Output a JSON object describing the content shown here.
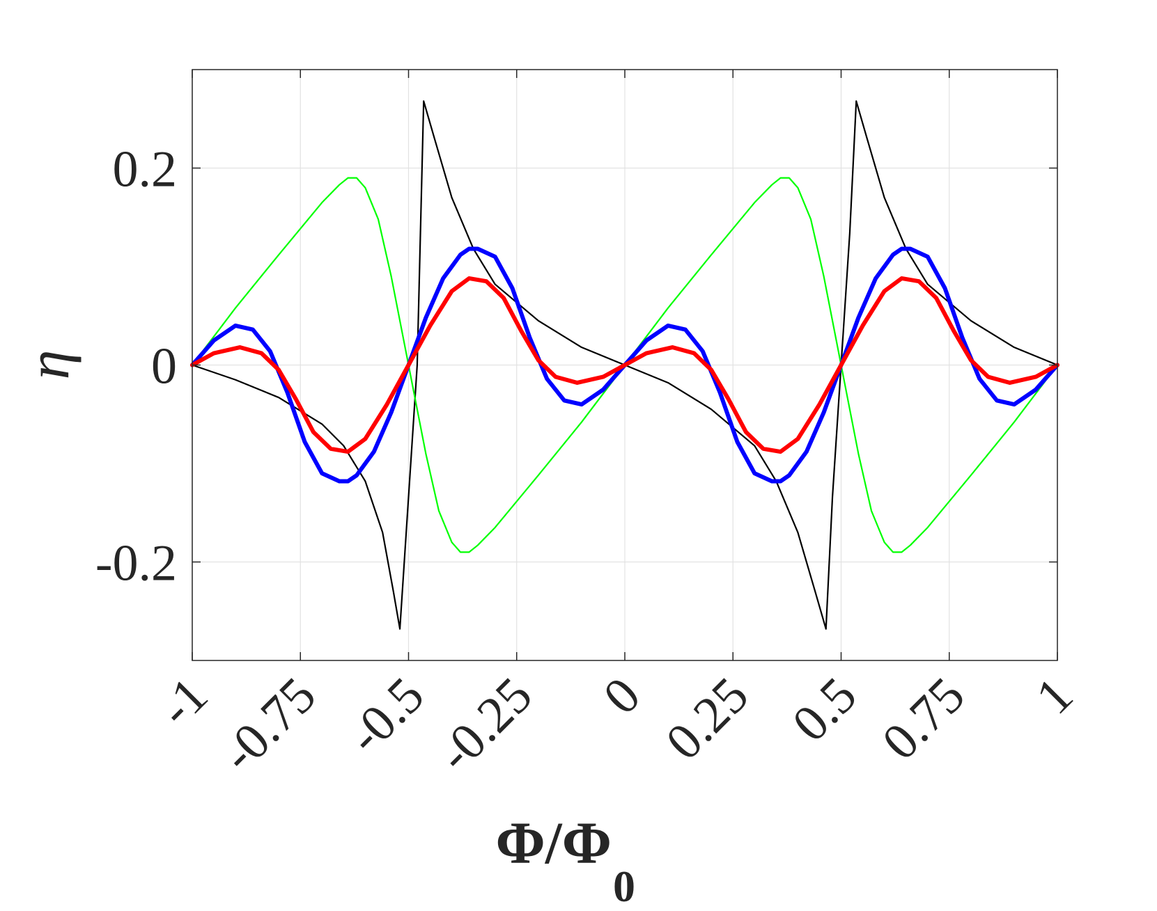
{
  "chart_data": {
    "type": "line",
    "title": "",
    "xlabel": "Φ/Φ",
    "xlabel_subscript": "0",
    "ylabel": "η",
    "xlim": [
      -1,
      1
    ],
    "ylim": [
      -0.3,
      0.3
    ],
    "xticks": [
      -1,
      -0.75,
      -0.5,
      -0.25,
      0,
      0.25,
      0.5,
      0.75,
      1
    ],
    "xtick_labels": [
      "-1",
      "-0.75",
      "-0.5",
      "-0.25",
      "0",
      "0.25",
      "0.5",
      "0.75",
      "1"
    ],
    "yticks": [
      -0.2,
      0,
      0.2
    ],
    "ytick_labels": [
      "-0.2",
      "0",
      "0.2"
    ],
    "grid": true,
    "legend": "none",
    "series": [
      {
        "color": "#000000",
        "x": [
          -1,
          -0.9,
          -0.8,
          -0.7,
          -0.65,
          -0.6,
          -0.56,
          -0.535,
          -0.52,
          -0.5,
          -0.48,
          -0.465,
          -0.44,
          -0.4,
          -0.35,
          -0.3,
          -0.2,
          -0.1,
          0,
          0.1,
          0.2,
          0.3,
          0.35,
          0.4,
          0.44,
          0.465,
          0.48,
          0.5,
          0.52,
          0.535,
          0.56,
          0.6,
          0.65,
          0.7,
          0.8,
          0.9,
          1
        ],
        "y": [
          0,
          -0.015,
          -0.033,
          -0.06,
          -0.082,
          -0.118,
          -0.17,
          -0.23,
          -0.268,
          -0.134,
          0,
          0.268,
          0.23,
          0.17,
          0.118,
          0.082,
          0.045,
          0.018,
          0,
          -0.018,
          -0.045,
          -0.082,
          -0.118,
          -0.17,
          -0.23,
          -0.268,
          -0.134,
          0,
          0.134,
          0.268,
          0.23,
          0.17,
          0.118,
          0.082,
          0.045,
          0.018,
          0
        ]
      },
      {
        "color": "#00ff00",
        "x": [
          -1,
          -0.9,
          -0.8,
          -0.7,
          -0.66,
          -0.64,
          -0.62,
          -0.6,
          -0.57,
          -0.54,
          -0.5,
          -0.46,
          -0.43,
          -0.4,
          -0.38,
          -0.36,
          -0.34,
          -0.3,
          -0.2,
          -0.1,
          0,
          0.1,
          0.2,
          0.3,
          0.34,
          0.36,
          0.38,
          0.4,
          0.43,
          0.46,
          0.5,
          0.54,
          0.57,
          0.6,
          0.62,
          0.64,
          0.66,
          0.7,
          0.8,
          0.9,
          1
        ],
        "y": [
          0,
          0.058,
          0.112,
          0.165,
          0.183,
          0.19,
          0.19,
          0.18,
          0.148,
          0.09,
          0,
          -0.09,
          -0.148,
          -0.18,
          -0.19,
          -0.19,
          -0.183,
          -0.165,
          -0.112,
          -0.058,
          0,
          0.058,
          0.112,
          0.165,
          0.183,
          0.19,
          0.19,
          0.18,
          0.148,
          0.09,
          0,
          -0.09,
          -0.148,
          -0.18,
          -0.19,
          -0.19,
          -0.183,
          -0.165,
          -0.112,
          -0.058,
          0
        ]
      },
      {
        "color": "#0000ff",
        "x": [
          -1,
          -0.95,
          -0.9,
          -0.86,
          -0.82,
          -0.78,
          -0.74,
          -0.7,
          -0.66,
          -0.64,
          -0.62,
          -0.58,
          -0.54,
          -0.5,
          -0.46,
          -0.42,
          -0.38,
          -0.36,
          -0.34,
          -0.3,
          -0.26,
          -0.22,
          -0.18,
          -0.14,
          -0.1,
          -0.05,
          0,
          0.05,
          0.1,
          0.14,
          0.18,
          0.22,
          0.26,
          0.3,
          0.34,
          0.36,
          0.38,
          0.42,
          0.46,
          0.5,
          0.54,
          0.58,
          0.62,
          0.64,
          0.66,
          0.7,
          0.74,
          0.78,
          0.82,
          0.86,
          0.9,
          0.95,
          1
        ],
        "y": [
          0,
          0.025,
          0.04,
          0.036,
          0.014,
          -0.028,
          -0.078,
          -0.11,
          -0.118,
          -0.118,
          -0.112,
          -0.088,
          -0.048,
          0,
          0.048,
          0.088,
          0.112,
          0.118,
          0.118,
          0.11,
          0.078,
          0.028,
          -0.014,
          -0.036,
          -0.04,
          -0.025,
          0,
          0.025,
          0.04,
          0.036,
          0.014,
          -0.028,
          -0.078,
          -0.11,
          -0.118,
          -0.118,
          -0.112,
          -0.088,
          -0.048,
          0,
          0.048,
          0.088,
          0.112,
          0.118,
          0.118,
          0.11,
          0.078,
          0.028,
          -0.014,
          -0.036,
          -0.04,
          -0.025,
          0
        ]
      },
      {
        "color": "#ff0000",
        "x": [
          -1,
          -0.95,
          -0.89,
          -0.84,
          -0.8,
          -0.76,
          -0.72,
          -0.68,
          -0.64,
          -0.6,
          -0.55,
          -0.5,
          -0.45,
          -0.4,
          -0.36,
          -0.32,
          -0.28,
          -0.24,
          -0.2,
          -0.16,
          -0.11,
          -0.05,
          0,
          0.05,
          0.11,
          0.16,
          0.2,
          0.24,
          0.28,
          0.32,
          0.36,
          0.4,
          0.45,
          0.5,
          0.55,
          0.6,
          0.64,
          0.68,
          0.72,
          0.76,
          0.8,
          0.84,
          0.89,
          0.95,
          1
        ],
        "y": [
          0,
          0.012,
          0.018,
          0.012,
          -0.005,
          -0.035,
          -0.068,
          -0.085,
          -0.088,
          -0.075,
          -0.04,
          0,
          0.04,
          0.075,
          0.088,
          0.085,
          0.068,
          0.035,
          0.005,
          -0.012,
          -0.018,
          -0.012,
          0,
          0.012,
          0.018,
          0.012,
          -0.005,
          -0.035,
          -0.068,
          -0.085,
          -0.088,
          -0.075,
          -0.04,
          0,
          0.04,
          0.075,
          0.088,
          0.085,
          0.068,
          0.035,
          0.005,
          -0.012,
          -0.018,
          -0.012,
          0
        ]
      }
    ]
  }
}
